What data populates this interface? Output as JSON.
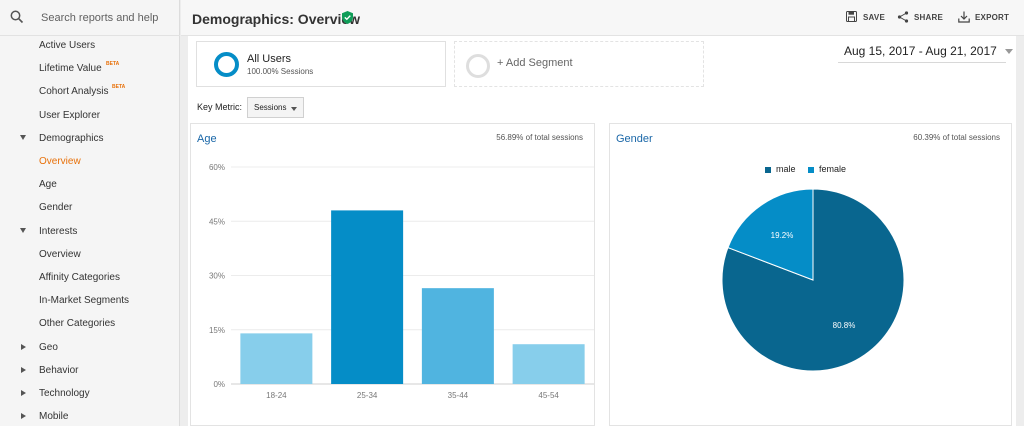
{
  "search": {
    "placeholder": "Search reports and help"
  },
  "sidebar": {
    "items": [
      {
        "label": "Active Users",
        "indent": 2
      },
      {
        "label": "Lifetime Value",
        "beta": "BETA",
        "indent": 2
      },
      {
        "label": "Cohort Analysis",
        "beta": "BETA",
        "indent": 2
      },
      {
        "label": "User Explorer",
        "indent": 2
      },
      {
        "label": "Demographics",
        "indent": 2,
        "arrow": "down"
      },
      {
        "label": "Overview",
        "indent": 2,
        "active": true
      },
      {
        "label": "Age",
        "indent": 2
      },
      {
        "label": "Gender",
        "indent": 2
      },
      {
        "label": "Interests",
        "indent": 2,
        "arrow": "down"
      },
      {
        "label": "Overview",
        "indent": 2
      },
      {
        "label": "Affinity Categories",
        "indent": 2
      },
      {
        "label": "In-Market Segments",
        "indent": 2
      },
      {
        "label": "Other Categories",
        "indent": 2
      },
      {
        "label": "Geo",
        "indent": 2,
        "arrow": "right"
      },
      {
        "label": "Behavior",
        "indent": 2,
        "arrow": "right"
      },
      {
        "label": "Technology",
        "indent": 2,
        "arrow": "right"
      },
      {
        "label": "Mobile",
        "indent": 2,
        "arrow": "right"
      }
    ]
  },
  "header": {
    "title": "Demographics: Overview",
    "save_label": "SAVE",
    "share_label": "SHARE",
    "export_label": "EXPORT"
  },
  "segments": {
    "all_users": {
      "name": "All Users",
      "sub": "100.00% Sessions"
    },
    "add_label": "+ Add Segment"
  },
  "date_range": "Aug 15, 2017 - Aug 21, 2017",
  "key_metric": {
    "label": "Key Metric:",
    "value": "Sessions"
  },
  "age_panel": {
    "title": "Age",
    "stat": "56.89% of total sessions"
  },
  "gender_panel": {
    "title": "Gender",
    "stat": "60.39% of total sessions"
  },
  "colors": {
    "accent_orange": "#e8710a",
    "link_blue": "#1a67a8",
    "bar_18_24": "#87ceeb",
    "bar_25_34": "#058dc7",
    "bar_35_44": "#50b4e0",
    "bar_45_54": "#87ceeb",
    "male": "#09668f",
    "female": "#058dc7",
    "verified": "#0f9d58"
  },
  "chart_data": [
    {
      "type": "bar",
      "title": "Age",
      "categories": [
        "18-24",
        "25-34",
        "35-44",
        "45-54"
      ],
      "values": [
        14,
        48,
        26.5,
        11
      ],
      "ylim": [
        0,
        60
      ],
      "yticks": [
        "0%",
        "15%",
        "30%",
        "45%",
        "60%"
      ],
      "grid": true
    },
    {
      "type": "pie",
      "title": "Gender",
      "series": [
        {
          "name": "male",
          "value": 80.8,
          "label": "80.8%"
        },
        {
          "name": "female",
          "value": 19.2,
          "label": "19.2%"
        }
      ],
      "legend": "top"
    }
  ]
}
